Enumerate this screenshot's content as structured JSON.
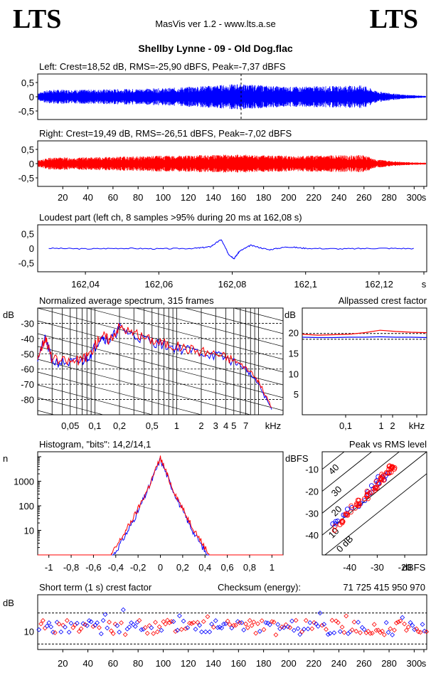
{
  "header": {
    "logo_left": "LTS",
    "logo_right": "LTS",
    "app_title": "MasVis ver 1.2 - www.lts.a.se",
    "file_title": "Shellby Lynne - 09 - Old Dog.flac"
  },
  "colors": {
    "left": "#0000ff",
    "right": "#ff0000",
    "dashed": "#000000"
  },
  "chart_data": [
    {
      "id": "left",
      "type": "line",
      "title": "Left: Crest=18,52 dB, RMS=-25,90 dBFS, Peak=-7,37 dBFS",
      "y_ticks": [
        "0,5",
        "0",
        "-0,5"
      ],
      "ylim": [
        -0.8,
        0.8
      ],
      "xlim": [
        0,
        310
      ],
      "marker_x": 162.08,
      "envelope": [
        [
          0,
          0.15
        ],
        [
          10,
          0.25
        ],
        [
          40,
          0.25
        ],
        [
          100,
          0.3
        ],
        [
          160,
          0.45
        ],
        [
          200,
          0.35
        ],
        [
          260,
          0.4
        ],
        [
          270,
          0.2
        ],
        [
          290,
          0.08
        ],
        [
          310,
          0.03
        ]
      ]
    },
    {
      "id": "right",
      "type": "line",
      "title": "Right: Crest=19,49 dB, RMS=-26,51 dBFS, Peak=-7,02 dBFS",
      "y_ticks": [
        "0,5",
        "0",
        "-0,5"
      ],
      "ylim": [
        -0.8,
        0.8
      ],
      "xlim": [
        0,
        310
      ],
      "x_ticks": [
        "20",
        "40",
        "60",
        "80",
        "100",
        "120",
        "140",
        "160",
        "180",
        "200",
        "220",
        "240",
        "260",
        "280",
        "300",
        "s"
      ],
      "envelope": [
        [
          0,
          0.12
        ],
        [
          10,
          0.22
        ],
        [
          40,
          0.22
        ],
        [
          100,
          0.28
        ],
        [
          160,
          0.32
        ],
        [
          200,
          0.28
        ],
        [
          260,
          0.3
        ],
        [
          270,
          0.15
        ],
        [
          290,
          0.06
        ],
        [
          310,
          0.03
        ]
      ]
    },
    {
      "id": "loudest",
      "type": "line",
      "title": "Loudest part (left  ch, 8 samples >95% during 20 ms at 162,08 s)",
      "y_ticks": [
        "0,5",
        "0",
        "-0,5"
      ],
      "ylim": [
        -0.8,
        0.8
      ],
      "x_ticks": [
        "162,04",
        "162,06",
        "162,08",
        "162,1",
        "162,12",
        "s"
      ],
      "xlim": [
        162.027,
        162.133
      ],
      "points": [
        [
          162.03,
          0.0
        ],
        [
          162.04,
          -0.02
        ],
        [
          162.05,
          0.0
        ],
        [
          162.06,
          -0.02
        ],
        [
          162.07,
          0.0
        ],
        [
          162.074,
          0.05
        ],
        [
          162.077,
          0.3
        ],
        [
          162.079,
          -0.2
        ],
        [
          162.0805,
          -0.35
        ],
        [
          162.082,
          -0.1
        ],
        [
          162.085,
          0.1
        ],
        [
          162.09,
          -0.05
        ],
        [
          162.095,
          0.05
        ],
        [
          162.1,
          0.0
        ],
        [
          162.11,
          -0.02
        ],
        [
          162.12,
          0.0
        ],
        [
          162.13,
          -0.01
        ]
      ]
    },
    {
      "id": "spectrum",
      "type": "line",
      "title": "Normalized average spectrum, 315 frames",
      "ylabel": "dB",
      "y_ticks": [
        "-30",
        "-40",
        "-50",
        "-60",
        "-70",
        "-80"
      ],
      "x_ticks": [
        "0,05",
        "0,1",
        "0,2",
        "0,5",
        "1",
        "2",
        "3",
        "4",
        "5",
        "7",
        "kHz"
      ],
      "xlim_khz": [
        0.02,
        20
      ],
      "ylim": [
        -90,
        -20
      ],
      "series": [
        {
          "values_khz_db": [
            [
              0.02,
              -52
            ],
            [
              0.025,
              -40
            ],
            [
              0.03,
              -55
            ],
            [
              0.05,
              -56
            ],
            [
              0.07,
              -55
            ],
            [
              0.09,
              -50
            ],
            [
              0.12,
              -38
            ],
            [
              0.15,
              -42
            ],
            [
              0.2,
              -33
            ],
            [
              0.3,
              -38
            ],
            [
              0.5,
              -42
            ],
            [
              0.8,
              -45
            ],
            [
              1.5,
              -48
            ],
            [
              3,
              -51
            ],
            [
              5,
              -55
            ],
            [
              7,
              -60
            ],
            [
              10,
              -70
            ],
            [
              15,
              -88
            ]
          ]
        },
        {
          "values_khz_db": [
            [
              0.02,
              -52
            ],
            [
              0.025,
              -39
            ],
            [
              0.03,
              -54
            ],
            [
              0.05,
              -55
            ],
            [
              0.07,
              -54
            ],
            [
              0.09,
              -49
            ],
            [
              0.12,
              -37
            ],
            [
              0.15,
              -41
            ],
            [
              0.2,
              -32
            ],
            [
              0.3,
              -37
            ],
            [
              0.5,
              -41
            ],
            [
              0.8,
              -44
            ],
            [
              1.5,
              -47
            ],
            [
              3,
              -50
            ],
            [
              5,
              -54
            ],
            [
              7,
              -59
            ],
            [
              10,
              -68
            ],
            [
              15,
              -87
            ]
          ]
        }
      ]
    },
    {
      "id": "crest",
      "type": "line",
      "title": "Allpassed crest factor",
      "ylabel": "dB",
      "y_ticks": [
        "20",
        "15",
        "10",
        "5"
      ],
      "x_ticks": [
        "0,1",
        "1",
        "2",
        "kHz"
      ],
      "ylim": [
        0,
        26
      ],
      "series": [
        {
          "values": [
            18.9,
            18.8,
            18.8,
            18.9,
            18.9,
            19.0,
            18.9,
            18.9,
            18.8
          ]
        },
        {
          "values": [
            19.6,
            19.4,
            19.5,
            19.6,
            20.0,
            20.6,
            20.3,
            20.1,
            20.0
          ]
        }
      ]
    },
    {
      "id": "histogram",
      "type": "line",
      "title": "Histogram, \"bits\": 14,2/14,1",
      "ylabel": "n",
      "y_ticks": [
        "1000",
        "100",
        "10"
      ],
      "x_ticks": [
        "-1",
        "-0,8",
        "-0,6",
        "-0,4",
        "-0,2",
        "0",
        "0,2",
        "0,4",
        "0,6",
        "0,8",
        "1"
      ],
      "xlim": [
        -1.1,
        1.1
      ],
      "series": [
        {
          "values": [
            [
              -0.42,
              1
            ],
            [
              -0.3,
              8
            ],
            [
              -0.2,
              60
            ],
            [
              -0.1,
              600
            ],
            [
              0,
              8000
            ],
            [
              0.1,
              600
            ],
            [
              0.2,
              60
            ],
            [
              0.3,
              8
            ],
            [
              0.42,
              1
            ]
          ]
        },
        {
          "values": [
            [
              -0.44,
              1
            ],
            [
              -0.32,
              8
            ],
            [
              -0.21,
              60
            ],
            [
              -0.1,
              650
            ],
            [
              0,
              9000
            ],
            [
              0.1,
              650
            ],
            [
              0.21,
              60
            ],
            [
              0.32,
              8
            ],
            [
              0.44,
              1
            ]
          ]
        }
      ]
    },
    {
      "id": "peak_rms",
      "type": "scatter",
      "title": "Peak vs RMS level",
      "ylabel": "dBFS",
      "y_ticks": [
        "-10",
        "-20",
        "-30",
        "-40"
      ],
      "x_ticks": [
        "-40",
        "-30",
        "-20",
        "dBFS"
      ],
      "diag_labels": [
        "40",
        "30",
        "20",
        "10",
        "0 dB"
      ],
      "xlim": [
        -50,
        -12
      ],
      "ylim": [
        -49,
        -2
      ],
      "series": [
        {
          "points": [
            [
              -46,
              -36
            ],
            [
              -44,
              -33
            ],
            [
              -40,
              -29
            ],
            [
              -36,
              -25
            ],
            [
              -33,
              -21
            ],
            [
              -31,
              -18
            ],
            [
              -29,
              -15
            ],
            [
              -28,
              -13
            ],
            [
              -27,
              -12
            ]
          ]
        },
        {
          "points": [
            [
              -45,
              -37
            ],
            [
              -42,
              -32
            ],
            [
              -38,
              -27
            ],
            [
              -35,
              -23
            ],
            [
              -32,
              -20
            ],
            [
              -30,
              -16
            ],
            [
              -28,
              -14
            ],
            [
              -26,
              -11
            ],
            [
              -25,
              -9
            ],
            [
              -24,
              -8
            ]
          ]
        }
      ]
    },
    {
      "id": "short_crest",
      "type": "scatter",
      "title": "Short term (1 s) crest factor",
      "checksum_label": "Checksum (energy):",
      "checksum_value": "71 725 415 950 970",
      "ylabel": "dB",
      "y_ticks": [
        "10"
      ],
      "x_ticks": [
        "20",
        "40",
        "60",
        "80",
        "100",
        "120",
        "140",
        "160",
        "180",
        "200",
        "220",
        "240",
        "260",
        "280",
        "300",
        "s"
      ],
      "xlim": [
        0,
        310
      ],
      "ylim": [
        0,
        30
      ],
      "mean_db": 12
    }
  ]
}
